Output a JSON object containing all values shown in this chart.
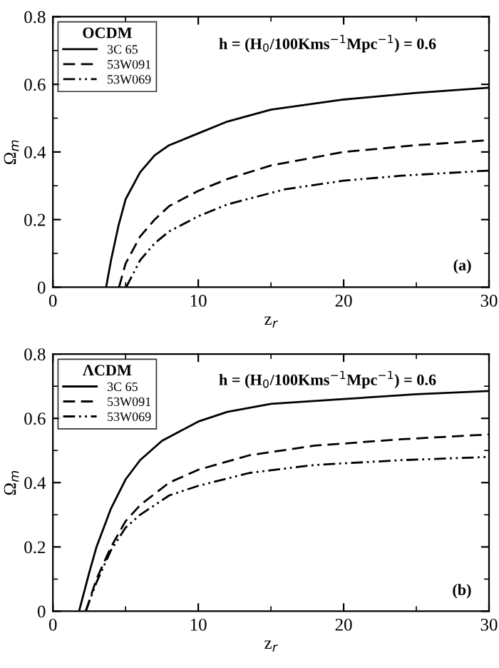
{
  "chart_data": [
    {
      "type": "line",
      "xlabel": "z$_{r}$",
      "ylabel": "Ω$_{m}$",
      "legend_title": "OCDM",
      "legend": "top left",
      "grid": false,
      "marker": "none",
      "annotations": [
        "h = (H$_{0}$/100Kms$^{−1}$Mpc$^{−1}$) = 0.6",
        "(a)"
      ],
      "xlim": [
        0,
        30
      ],
      "ylim": [
        0,
        0.8
      ],
      "xticks": [
        0,
        {
          "value": 5,
          "label": null
        },
        10,
        {
          "value": 15,
          "label": null
        },
        20,
        {
          "value": 25,
          "label": null
        },
        30
      ],
      "yticks": [
        0,
        {
          "value": 0.1,
          "label": null
        },
        0.2,
        {
          "value": 0.3,
          "label": null
        },
        0.4,
        {
          "value": 0.5,
          "label": null
        },
        0.6,
        {
          "value": 0.7,
          "label": null
        },
        0.8
      ],
      "series": [
        {
          "name": "3C 65",
          "color": "#000000",
          "line_style": "solid",
          "x": [
            3.66,
            4,
            4.5,
            5,
            6,
            7,
            8,
            10,
            12,
            15,
            20,
            25,
            30
          ],
          "values": [
            0,
            0.08,
            0.18,
            0.26,
            0.34,
            0.39,
            0.42,
            0.455,
            0.49,
            0.525,
            0.555,
            0.575,
            0.59
          ]
        },
        {
          "name": "53W091",
          "color": "#000000",
          "line_style": "dashed",
          "x": [
            4.55,
            5,
            6,
            7,
            8,
            10,
            12,
            15,
            20,
            25,
            30
          ],
          "values": [
            0,
            0.07,
            0.15,
            0.2,
            0.24,
            0.285,
            0.32,
            0.36,
            0.4,
            0.42,
            0.435
          ]
        },
        {
          "name": "53W069",
          "color": "#000000",
          "line_style": "dashdot",
          "x": [
            5.04,
            6,
            7,
            8,
            10,
            12,
            16,
            20,
            24,
            30
          ],
          "values": [
            0,
            0.08,
            0.13,
            0.165,
            0.21,
            0.245,
            0.29,
            0.315,
            0.33,
            0.345
          ]
        }
      ]
    },
    {
      "type": "line",
      "xlabel": "z$_{r}$",
      "ylabel": "Ω$_{m}$",
      "legend_title": "ΛCDM",
      "legend": "top left",
      "grid": false,
      "marker": "none",
      "annotations": [
        "h = (H$_{0}$/100Kms$^{−1}$Mpc$^{−1}$) = 0.6",
        "(b)"
      ],
      "xlim": [
        0,
        30
      ],
      "ylim": [
        0,
        0.8
      ],
      "xticks": [
        0,
        {
          "value": 5,
          "label": null
        },
        10,
        {
          "value": 15,
          "label": null
        },
        20,
        {
          "value": 25,
          "label": null
        },
        30
      ],
      "yticks": [
        0,
        {
          "value": 0.1,
          "label": null
        },
        0.2,
        {
          "value": 0.3,
          "label": null
        },
        0.4,
        {
          "value": 0.5,
          "label": null
        },
        0.6,
        {
          "value": 0.7,
          "label": null
        },
        0.8
      ],
      "series": [
        {
          "name": "3C 65",
          "color": "#000000",
          "line_style": "solid",
          "x": [
            1.8,
            2.5,
            3,
            4,
            5,
            6,
            7.5,
            10,
            12,
            15,
            20,
            25,
            30
          ],
          "values": [
            0,
            0.12,
            0.2,
            0.32,
            0.41,
            0.47,
            0.53,
            0.59,
            0.62,
            0.645,
            0.66,
            0.675,
            0.685
          ]
        },
        {
          "name": "53W091",
          "color": "#000000",
          "line_style": "dashed",
          "x": [
            2.26,
            3,
            4,
            5,
            6,
            8,
            10,
            13.5,
            18,
            24,
            30
          ],
          "values": [
            0,
            0.1,
            0.2,
            0.28,
            0.33,
            0.4,
            0.44,
            0.485,
            0.515,
            0.535,
            0.55
          ]
        },
        {
          "name": "53W069",
          "color": "#000000",
          "line_style": "dashdot",
          "x": [
            2.26,
            3,
            4,
            5,
            6,
            8,
            10,
            13.5,
            18,
            24,
            30
          ],
          "values": [
            0,
            0.09,
            0.19,
            0.26,
            0.3,
            0.36,
            0.39,
            0.43,
            0.455,
            0.47,
            0.48
          ]
        }
      ]
    }
  ]
}
